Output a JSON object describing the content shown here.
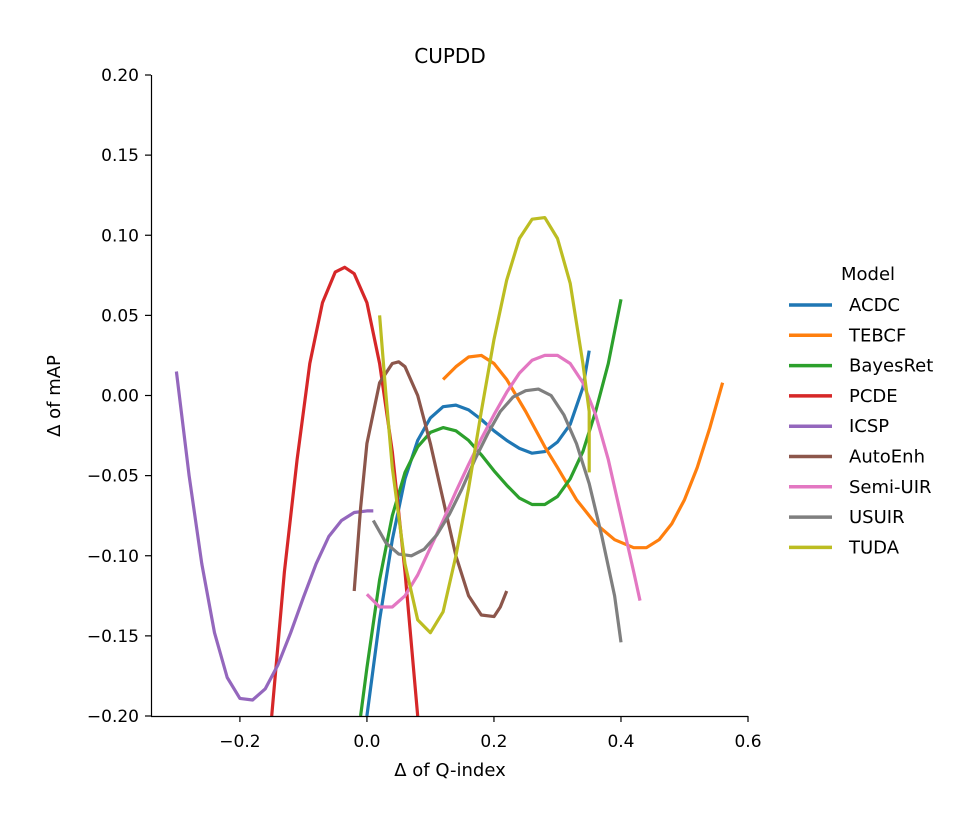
{
  "chart_data": {
    "type": "line",
    "title": "CUPDD",
    "xlabel": "Δ of Q-index",
    "ylabel": "Δ of mAP",
    "xlim": [
      -0.34,
      0.6
    ],
    "ylim": [
      -0.2,
      0.2
    ],
    "x_ticks": [
      -0.2,
      0.0,
      0.2,
      0.4,
      0.6
    ],
    "x_tick_labels": [
      "−0.2",
      "0.0",
      "0.2",
      "0.4",
      "0.6"
    ],
    "y_ticks": [
      -0.2,
      -0.15,
      -0.1,
      -0.05,
      0.0,
      0.05,
      0.1,
      0.15,
      0.2
    ],
    "y_tick_labels": [
      "−0.20",
      "−0.15",
      "−0.10",
      "−0.05",
      "0.00",
      "0.05",
      "0.10",
      "0.15",
      "0.20"
    ],
    "grid": false,
    "legend": {
      "title": "Model",
      "placement": "right"
    },
    "series": [
      {
        "name": "ACDC",
        "color": "#1f77b4",
        "points": [
          [
            0.0,
            -0.2
          ],
          [
            0.02,
            -0.14
          ],
          [
            0.04,
            -0.09
          ],
          [
            0.06,
            -0.052
          ],
          [
            0.08,
            -0.028
          ],
          [
            0.1,
            -0.014
          ],
          [
            0.12,
            -0.007
          ],
          [
            0.14,
            -0.006
          ],
          [
            0.16,
            -0.009
          ],
          [
            0.18,
            -0.015
          ],
          [
            0.2,
            -0.022
          ],
          [
            0.22,
            -0.028
          ],
          [
            0.24,
            -0.033
          ],
          [
            0.26,
            -0.036
          ],
          [
            0.28,
            -0.035
          ],
          [
            0.3,
            -0.029
          ],
          [
            0.32,
            -0.018
          ],
          [
            0.34,
            0.005
          ],
          [
            0.35,
            0.028
          ]
        ]
      },
      {
        "name": "TEBCF",
        "color": "#ff7f0e",
        "points": [
          [
            0.12,
            0.01
          ],
          [
            0.14,
            0.018
          ],
          [
            0.16,
            0.024
          ],
          [
            0.18,
            0.025
          ],
          [
            0.2,
            0.02
          ],
          [
            0.22,
            0.01
          ],
          [
            0.25,
            -0.01
          ],
          [
            0.28,
            -0.032
          ],
          [
            0.3,
            -0.045
          ],
          [
            0.33,
            -0.065
          ],
          [
            0.36,
            -0.08
          ],
          [
            0.39,
            -0.09
          ],
          [
            0.42,
            -0.095
          ],
          [
            0.44,
            -0.095
          ],
          [
            0.46,
            -0.09
          ],
          [
            0.48,
            -0.08
          ],
          [
            0.5,
            -0.065
          ],
          [
            0.52,
            -0.045
          ],
          [
            0.54,
            -0.02
          ],
          [
            0.56,
            0.008
          ]
        ]
      },
      {
        "name": "BayesRet",
        "color": "#2ca02c",
        "points": [
          [
            -0.01,
            -0.2
          ],
          [
            0.0,
            -0.17
          ],
          [
            0.02,
            -0.115
          ],
          [
            0.04,
            -0.075
          ],
          [
            0.06,
            -0.048
          ],
          [
            0.08,
            -0.032
          ],
          [
            0.1,
            -0.023
          ],
          [
            0.12,
            -0.02
          ],
          [
            0.14,
            -0.022
          ],
          [
            0.16,
            -0.028
          ],
          [
            0.18,
            -0.037
          ],
          [
            0.2,
            -0.047
          ],
          [
            0.22,
            -0.056
          ],
          [
            0.24,
            -0.064
          ],
          [
            0.26,
            -0.068
          ],
          [
            0.28,
            -0.068
          ],
          [
            0.3,
            -0.063
          ],
          [
            0.32,
            -0.052
          ],
          [
            0.34,
            -0.035
          ],
          [
            0.36,
            -0.01
          ],
          [
            0.38,
            0.02
          ],
          [
            0.4,
            0.06
          ]
        ]
      },
      {
        "name": "PCDE",
        "color": "#d62728",
        "points": [
          [
            -0.15,
            -0.2
          ],
          [
            -0.13,
            -0.11
          ],
          [
            -0.11,
            -0.04
          ],
          [
            -0.09,
            0.02
          ],
          [
            -0.07,
            0.058
          ],
          [
            -0.05,
            0.077
          ],
          [
            -0.035,
            0.08
          ],
          [
            -0.02,
            0.076
          ],
          [
            0.0,
            0.058
          ],
          [
            0.02,
            0.02
          ],
          [
            0.04,
            -0.035
          ],
          [
            0.06,
            -0.11
          ],
          [
            0.08,
            -0.2
          ]
        ]
      },
      {
        "name": "ICSP",
        "color": "#9467bd",
        "points": [
          [
            -0.3,
            0.015
          ],
          [
            -0.28,
            -0.05
          ],
          [
            -0.26,
            -0.105
          ],
          [
            -0.24,
            -0.148
          ],
          [
            -0.22,
            -0.176
          ],
          [
            -0.2,
            -0.189
          ],
          [
            -0.18,
            -0.19
          ],
          [
            -0.16,
            -0.183
          ],
          [
            -0.14,
            -0.168
          ],
          [
            -0.12,
            -0.148
          ],
          [
            -0.1,
            -0.126
          ],
          [
            -0.08,
            -0.105
          ],
          [
            -0.06,
            -0.088
          ],
          [
            -0.04,
            -0.078
          ],
          [
            -0.02,
            -0.073
          ],
          [
            0.0,
            -0.072
          ],
          [
            0.01,
            -0.072
          ]
        ]
      },
      {
        "name": "AutoEnh",
        "color": "#8c564b",
        "points": [
          [
            -0.02,
            -0.122
          ],
          [
            -0.01,
            -0.07
          ],
          [
            0.0,
            -0.03
          ],
          [
            0.02,
            0.008
          ],
          [
            0.04,
            0.02
          ],
          [
            0.05,
            0.021
          ],
          [
            0.06,
            0.018
          ],
          [
            0.08,
            0.0
          ],
          [
            0.1,
            -0.03
          ],
          [
            0.12,
            -0.065
          ],
          [
            0.14,
            -0.1
          ],
          [
            0.16,
            -0.125
          ],
          [
            0.18,
            -0.137
          ],
          [
            0.2,
            -0.138
          ],
          [
            0.21,
            -0.132
          ],
          [
            0.22,
            -0.122
          ]
        ]
      },
      {
        "name": "Semi-UIR",
        "color": "#e377c2",
        "points": [
          [
            0.0,
            -0.124
          ],
          [
            0.02,
            -0.132
          ],
          [
            0.04,
            -0.132
          ],
          [
            0.06,
            -0.125
          ],
          [
            0.08,
            -0.112
          ],
          [
            0.1,
            -0.095
          ],
          [
            0.12,
            -0.078
          ],
          [
            0.14,
            -0.06
          ],
          [
            0.16,
            -0.043
          ],
          [
            0.18,
            -0.027
          ],
          [
            0.2,
            -0.012
          ],
          [
            0.22,
            0.002
          ],
          [
            0.24,
            0.014
          ],
          [
            0.26,
            0.022
          ],
          [
            0.28,
            0.025
          ],
          [
            0.3,
            0.025
          ],
          [
            0.32,
            0.02
          ],
          [
            0.34,
            0.008
          ],
          [
            0.36,
            -0.012
          ],
          [
            0.38,
            -0.04
          ],
          [
            0.4,
            -0.075
          ],
          [
            0.42,
            -0.11
          ],
          [
            0.43,
            -0.128
          ]
        ]
      },
      {
        "name": "USUIR",
        "color": "#7f7f7f",
        "points": [
          [
            0.01,
            -0.078
          ],
          [
            0.03,
            -0.092
          ],
          [
            0.05,
            -0.099
          ],
          [
            0.07,
            -0.1
          ],
          [
            0.09,
            -0.096
          ],
          [
            0.11,
            -0.087
          ],
          [
            0.13,
            -0.074
          ],
          [
            0.15,
            -0.058
          ],
          [
            0.17,
            -0.04
          ],
          [
            0.19,
            -0.024
          ],
          [
            0.21,
            -0.01
          ],
          [
            0.23,
            -0.001
          ],
          [
            0.25,
            0.003
          ],
          [
            0.27,
            0.004
          ],
          [
            0.29,
            0.0
          ],
          [
            0.31,
            -0.012
          ],
          [
            0.33,
            -0.03
          ],
          [
            0.35,
            -0.055
          ],
          [
            0.37,
            -0.088
          ],
          [
            0.39,
            -0.125
          ],
          [
            0.4,
            -0.154
          ]
        ]
      },
      {
        "name": "TUDA",
        "color": "#bcbd22",
        "points": [
          [
            0.02,
            0.05
          ],
          [
            0.03,
            0.0
          ],
          [
            0.04,
            -0.045
          ],
          [
            0.06,
            -0.105
          ],
          [
            0.08,
            -0.14
          ],
          [
            0.1,
            -0.148
          ],
          [
            0.12,
            -0.135
          ],
          [
            0.14,
            -0.1
          ],
          [
            0.16,
            -0.058
          ],
          [
            0.18,
            -0.01
          ],
          [
            0.2,
            0.035
          ],
          [
            0.22,
            0.072
          ],
          [
            0.24,
            0.098
          ],
          [
            0.26,
            0.11
          ],
          [
            0.28,
            0.111
          ],
          [
            0.3,
            0.098
          ],
          [
            0.32,
            0.07
          ],
          [
            0.34,
            0.02
          ],
          [
            0.35,
            -0.01
          ],
          [
            0.35,
            -0.048
          ]
        ]
      }
    ]
  }
}
